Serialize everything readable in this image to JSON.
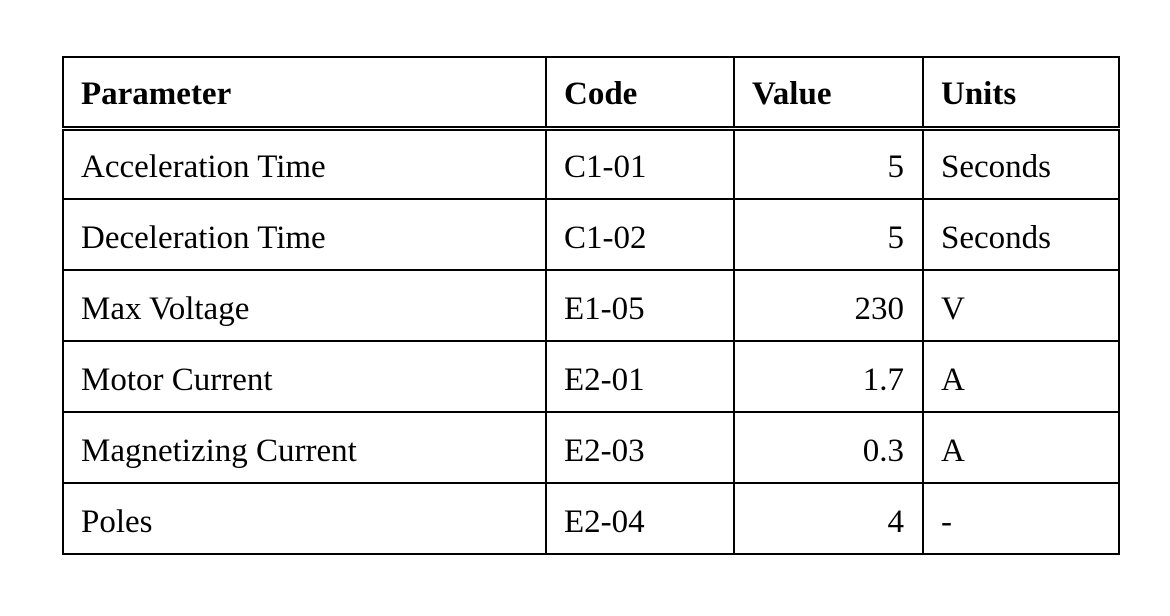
{
  "table": {
    "columns": {
      "parameter": "Parameter",
      "code": "Code",
      "value": "Value",
      "units": "Units"
    },
    "rows": [
      {
        "parameter": "Acceleration Time",
        "code": "C1-01",
        "value": "5",
        "units": "Seconds"
      },
      {
        "parameter": "Deceleration Time",
        "code": "C1-02",
        "value": "5",
        "units": "Seconds"
      },
      {
        "parameter": "Max Voltage",
        "code": "E1-05",
        "value": "230",
        "units": "V"
      },
      {
        "parameter": "Motor Current",
        "code": "E2-01",
        "value": "1.7",
        "units": "A"
      },
      {
        "parameter": "Magnetizing Current",
        "code": "E2-03",
        "value": "0.3",
        "units": "A"
      },
      {
        "parameter": "Poles",
        "code": "E2-04",
        "value": "4",
        "units": "-"
      }
    ],
    "border_color": "#000000",
    "background_color": "#ffffff"
  }
}
